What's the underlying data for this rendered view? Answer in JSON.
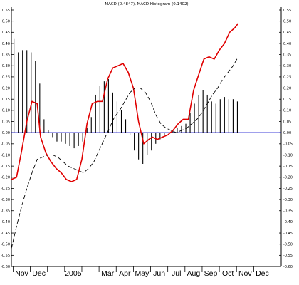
{
  "chart_data": {
    "type": "line",
    "title": "MACD (0.4847), MACD Histogram (0.1402)",
    "xlabel": "",
    "ylabel": "",
    "categories": [
      "Nov",
      "Dec",
      "2005",
      "Mar",
      "Apr",
      "May",
      "Jun",
      "Jul",
      "Aug",
      "Sep",
      "Oct",
      "Nov",
      "Dec"
    ],
    "category_index": [
      1,
      2,
      4,
      6,
      7,
      8,
      9,
      10,
      11,
      12,
      13,
      14,
      15
    ],
    "xlim": [
      0.4,
      16.1
    ],
    "ylim": [
      -0.6,
      0.55
    ],
    "yticks": [
      0.55,
      0.5,
      0.45,
      0.4,
      0.35,
      0.3,
      0.25,
      0.2,
      0.15,
      0.1,
      0.05,
      0.0,
      -0.05,
      -0.1,
      -0.15,
      -0.2,
      -0.25,
      -0.3,
      -0.35,
      -0.4,
      -0.45,
      -0.5,
      -0.55,
      -0.6
    ],
    "ytick_labels": [
      "0.55",
      "0.50",
      "0.45",
      "0.40",
      "0.35",
      "0.30",
      "0.25",
      "0.20",
      "0.15",
      "0.10",
      "0.05",
      "0.00",
      "-0.05",
      "-0.10",
      "-0.15",
      "-0.20",
      "-0.25",
      "-0.30",
      "-0.35",
      "-0.40",
      "-0.45",
      "-0.50",
      "-0.55",
      "-0.60"
    ],
    "zero_line": 0.0,
    "grid": false,
    "colors": {
      "macd": "#e00000",
      "signal": "#000000",
      "histogram": "#000000",
      "zero": "#0000cc"
    },
    "series": [
      {
        "kind": "line",
        "style": "solid",
        "x": [
          0.4,
          0.7,
          1.0,
          1.3,
          1.6,
          1.9,
          2.1,
          2.4,
          2.7,
          3.0,
          3.3,
          3.6,
          3.9,
          4.2,
          4.5,
          4.8,
          5.1,
          5.4,
          5.7,
          6.0,
          6.3,
          6.6,
          6.9,
          7.2,
          7.5,
          7.8,
          8.1,
          8.4,
          8.6,
          8.9,
          9.2,
          9.5,
          9.8,
          10.1,
          10.4,
          10.7,
          11.0,
          11.3,
          11.6,
          11.9,
          12.2,
          12.5,
          12.8,
          13.1,
          13.4,
          13.6
        ],
        "y": [
          -0.21,
          -0.2,
          -0.08,
          0.05,
          0.14,
          0.13,
          -0.02,
          -0.09,
          -0.13,
          -0.16,
          -0.18,
          -0.21,
          -0.22,
          -0.21,
          -0.12,
          0.04,
          0.13,
          0.14,
          0.14,
          0.24,
          0.29,
          0.3,
          0.31,
          0.27,
          0.2,
          0.05,
          -0.05,
          -0.03,
          -0.02,
          -0.03,
          -0.02,
          -0.01,
          0.01,
          0.04,
          0.06,
          0.06,
          0.19,
          0.26,
          0.33,
          0.34,
          0.33,
          0.37,
          0.4,
          0.45,
          0.47,
          0.49
        ]
      },
      {
        "kind": "line",
        "style": "dashed",
        "x": [
          0.4,
          0.7,
          1.0,
          1.3,
          1.6,
          1.9,
          2.2,
          2.5,
          2.8,
          3.1,
          3.4,
          3.7,
          4.0,
          4.3,
          4.6,
          4.9,
          5.2,
          5.5,
          5.8,
          6.1,
          6.4,
          6.7,
          7.0,
          7.3,
          7.6,
          7.9,
          8.2,
          8.5,
          8.8,
          9.1,
          9.4,
          9.7,
          10.0,
          10.3,
          10.6,
          10.9,
          11.2,
          11.5,
          11.8,
          12.1,
          12.4,
          12.7,
          13.0,
          13.3,
          13.6
        ],
        "y": [
          -0.52,
          -0.42,
          -0.33,
          -0.25,
          -0.18,
          -0.12,
          -0.11,
          -0.1,
          -0.1,
          -0.11,
          -0.13,
          -0.15,
          -0.16,
          -0.17,
          -0.18,
          -0.16,
          -0.13,
          -0.08,
          -0.03,
          0.02,
          0.07,
          0.1,
          0.14,
          0.18,
          0.2,
          0.2,
          0.18,
          0.14,
          0.08,
          0.04,
          0.02,
          0.01,
          0.0,
          0.01,
          0.02,
          0.04,
          0.06,
          0.09,
          0.13,
          0.17,
          0.2,
          0.24,
          0.27,
          0.3,
          0.34
        ]
      },
      {
        "kind": "histogram",
        "x": [
          0.55,
          0.8,
          1.05,
          1.3,
          1.55,
          1.8,
          2.05,
          2.3,
          2.55,
          2.8,
          3.05,
          3.3,
          3.55,
          3.8,
          4.05,
          4.3,
          4.55,
          4.8,
          5.05,
          5.3,
          5.55,
          5.8,
          6.05,
          6.3,
          6.55,
          6.8,
          7.05,
          7.3,
          7.55,
          7.8,
          8.05,
          8.3,
          8.55,
          8.8,
          9.05,
          9.3,
          9.55,
          9.8,
          10.05,
          10.3,
          10.55,
          10.8,
          11.05,
          11.3,
          11.55,
          11.8,
          12.05,
          12.3,
          12.55,
          12.8,
          13.05,
          13.3,
          13.55
        ],
        "y": [
          0.42,
          0.36,
          0.37,
          0.37,
          0.36,
          0.32,
          0.22,
          0.06,
          0.01,
          -0.02,
          -0.04,
          -0.04,
          -0.05,
          -0.06,
          -0.07,
          -0.06,
          -0.04,
          0.02,
          0.07,
          0.17,
          0.21,
          0.23,
          0.24,
          0.18,
          0.14,
          0.1,
          0.06,
          -0.01,
          -0.08,
          -0.12,
          -0.14,
          -0.1,
          -0.08,
          -0.05,
          -0.03,
          -0.01,
          0.0,
          0.01,
          0.02,
          0.03,
          0.04,
          0.09,
          0.13,
          0.17,
          0.19,
          0.17,
          0.14,
          0.13,
          0.15,
          0.16,
          0.15,
          0.15,
          0.14
        ]
      }
    ]
  }
}
